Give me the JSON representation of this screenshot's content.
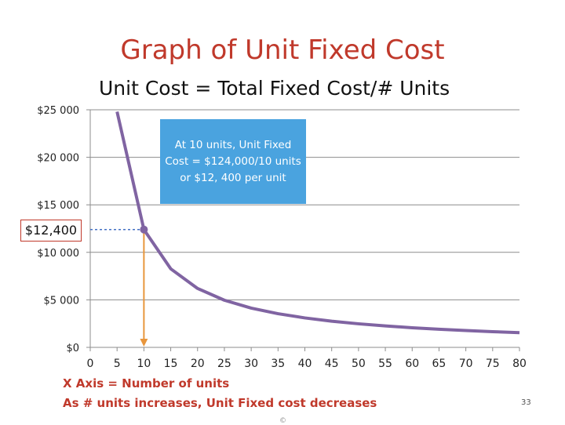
{
  "title": "Graph of Unit Fixed Cost",
  "subtitle": "Unit Cost = Total Fixed Cost/# Units",
  "callout": "At 10 units, Unit Fixed Cost = $124,000/10  units or $12, 400 per unit",
  "highlight_label": "$12,400",
  "notes": [
    "X Axis = Number of units",
    "As # units increases, Unit Fixed cost decreases"
  ],
  "slide_number": "33",
  "copyright": "©",
  "colors": {
    "title": "#c0392b",
    "curve": "#8064a2",
    "callout": "#4aa3df",
    "arrow": "#e8963c",
    "dotted": "#4472c4"
  },
  "chart_data": {
    "type": "line",
    "title": "",
    "xlabel": "",
    "ylabel": "",
    "xlim": [
      0,
      80
    ],
    "ylim": [
      0,
      25000
    ],
    "y_tick_labels": [
      "$0",
      "$5 000",
      "$10 000",
      "$15 000",
      "$20 000",
      "$25 000"
    ],
    "y_tick_values": [
      0,
      5000,
      10000,
      15000,
      20000,
      25000
    ],
    "x_tick_labels": [
      "0",
      "5",
      "10",
      "15",
      "20",
      "25",
      "30",
      "35",
      "40",
      "45",
      "50",
      "55",
      "60",
      "65",
      "70",
      "75",
      "80"
    ],
    "x_tick_values": [
      0,
      5,
      10,
      15,
      20,
      25,
      30,
      35,
      40,
      45,
      50,
      55,
      60,
      65,
      70,
      75,
      80
    ],
    "grid": true,
    "series": [
      {
        "x": [
          5,
          10,
          15,
          20,
          25,
          30,
          35,
          40,
          45,
          50,
          55,
          60,
          65,
          70,
          75,
          80
        ],
        "y": [
          24800,
          12400,
          8267,
          6200,
          4960,
          4133,
          3543,
          3100,
          2756,
          2480,
          2255,
          2067,
          1908,
          1771,
          1653,
          1550
        ]
      }
    ],
    "highlight_point": {
      "x": 10,
      "y": 12400
    }
  }
}
